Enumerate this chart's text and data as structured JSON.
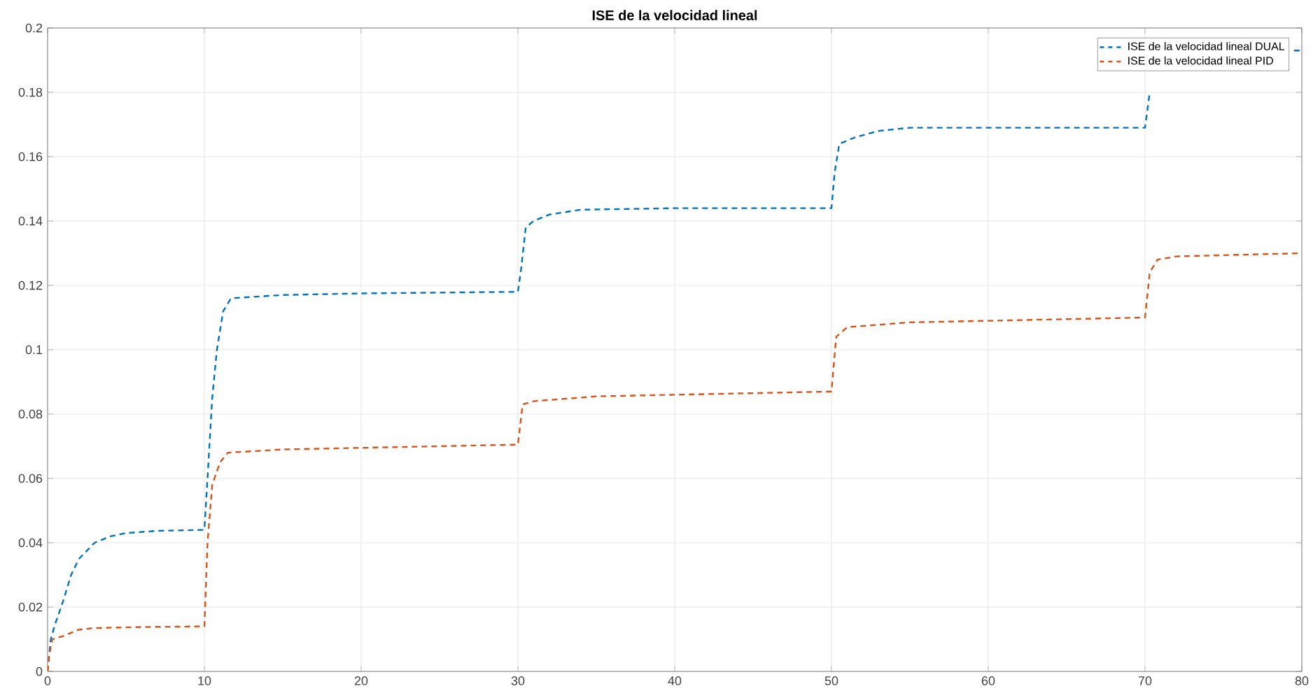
{
  "chart_data": {
    "type": "line",
    "title": "ISE de la velocidad lineal",
    "xlim": [
      0,
      80
    ],
    "ylim": [
      0,
      0.2
    ],
    "xticks": [
      0,
      10,
      20,
      30,
      40,
      50,
      60,
      70,
      80
    ],
    "yticks": [
      0,
      0.02,
      0.04,
      0.06,
      0.08,
      0.1,
      0.12,
      0.14,
      0.16,
      0.18,
      0.2
    ],
    "grid": true,
    "legend": "top right",
    "line_style": "dashed",
    "marker": "none",
    "series": [
      {
        "name": "ISE de la velocidad lineal DUAL",
        "color": "#0072bd",
        "x": [
          0,
          0.2,
          0.5,
          1,
          1.5,
          2,
          3,
          4,
          5,
          7,
          10,
          10.2,
          10.5,
          10.8,
          11.2,
          11.7,
          15,
          20,
          30,
          30.2,
          30.5,
          31,
          32,
          34,
          40,
          50,
          50.2,
          50.5,
          51.5,
          53,
          55,
          70,
          70.3,
          70.6,
          71,
          79.5,
          80
        ],
        "values": [
          0,
          0.01,
          0.015,
          0.022,
          0.03,
          0.035,
          0.04,
          0.042,
          0.043,
          0.0437,
          0.044,
          0.06,
          0.085,
          0.1,
          0.112,
          0.116,
          0.117,
          0.1175,
          0.118,
          0.125,
          0.138,
          0.14,
          0.142,
          0.1435,
          0.144,
          0.144,
          0.155,
          0.164,
          0.166,
          0.168,
          0.169,
          0.169,
          0.18,
          null,
          null,
          0.193,
          0.193
        ]
      },
      {
        "name": "ISE de la velocidad lineal PID",
        "color": "#d95319",
        "x": [
          0,
          0.1,
          0.3,
          1,
          2,
          3,
          6,
          10,
          10.2,
          10.5,
          11,
          11.5,
          15,
          20,
          30,
          30.3,
          31,
          35,
          40,
          50,
          50.3,
          51,
          55,
          60,
          70,
          70.3,
          70.8,
          72,
          80
        ],
        "values": [
          0,
          0.005,
          0.01,
          0.011,
          0.013,
          0.0135,
          0.0138,
          0.014,
          0.04,
          0.058,
          0.065,
          0.068,
          0.069,
          0.0695,
          0.0705,
          0.083,
          0.084,
          0.0855,
          0.086,
          0.087,
          0.104,
          0.107,
          0.1085,
          0.109,
          0.11,
          0.124,
          0.128,
          0.129,
          0.13
        ]
      }
    ]
  }
}
